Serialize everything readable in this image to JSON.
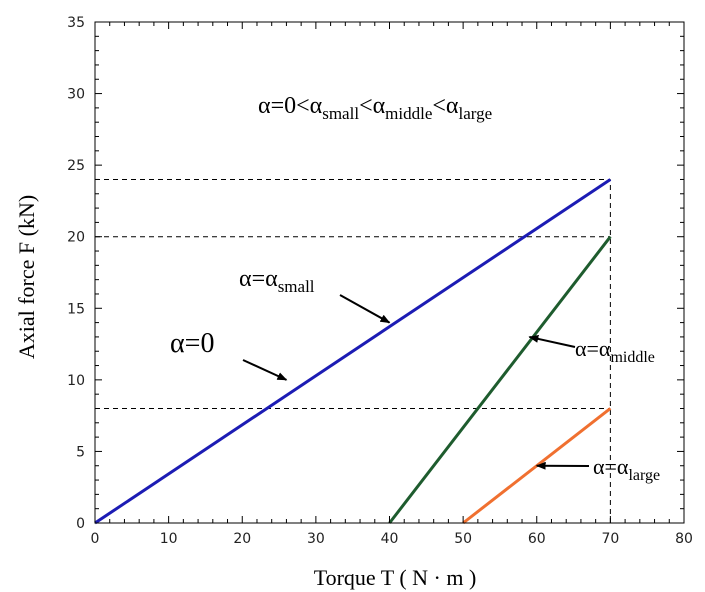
{
  "chart_data": {
    "type": "line",
    "title": "",
    "xlabel": "Torque T ( N · m )",
    "ylabel": "Axial force F (kN)",
    "xlim": [
      0,
      80
    ],
    "ylim": [
      0,
      35
    ],
    "xticks": [
      0,
      10,
      20,
      30,
      40,
      50,
      60,
      70,
      80
    ],
    "yticks": [
      0,
      5,
      10,
      15,
      20,
      25,
      30,
      35
    ],
    "grid": false,
    "series": [
      {
        "name": "α=0 / α=αsmall",
        "color": "#1c1cb4",
        "x": [
          0,
          70
        ],
        "y": [
          0,
          24
        ]
      },
      {
        "name": "α=αmiddle",
        "color": "#1e5c2e",
        "x": [
          40,
          70
        ],
        "y": [
          0,
          20
        ]
      },
      {
        "name": "α=αlarge",
        "color": "#f07030",
        "x": [
          50,
          70
        ],
        "y": [
          0,
          8
        ]
      }
    ],
    "reference_lines": [
      {
        "orientation": "horizontal",
        "y": 24,
        "x_range": [
          0,
          70
        ]
      },
      {
        "orientation": "horizontal",
        "y": 20,
        "x_range": [
          0,
          70
        ]
      },
      {
        "orientation": "horizontal",
        "y": 8,
        "x_range": [
          0,
          70
        ]
      },
      {
        "orientation": "vertical",
        "x": 70,
        "y_range": [
          0,
          24
        ]
      }
    ],
    "annotations": {
      "header": {
        "parts": [
          {
            "t": "α=0<α"
          },
          {
            "t": "small",
            "sub": true
          },
          {
            "t": "<α"
          },
          {
            "t": "middle",
            "sub": true
          },
          {
            "t": "<α"
          },
          {
            "t": "large",
            "sub": true
          }
        ]
      },
      "alpha_zero": {
        "parts": [
          {
            "t": "α=0"
          }
        ],
        "arrow_to": [
          26,
          10
        ]
      },
      "alpha_small": {
        "parts": [
          {
            "t": "α=α"
          },
          {
            "t": "small",
            "sub": true
          }
        ],
        "arrow_to": [
          40,
          14
        ]
      },
      "alpha_middle": {
        "parts": [
          {
            "t": "α=α"
          },
          {
            "t": "middle",
            "sub": true
          }
        ],
        "arrow_to": [
          59,
          13
        ]
      },
      "alpha_large": {
        "parts": [
          {
            "t": "α=α"
          },
          {
            "t": "large",
            "sub": true
          }
        ],
        "arrow_to": [
          60,
          4
        ]
      }
    }
  }
}
